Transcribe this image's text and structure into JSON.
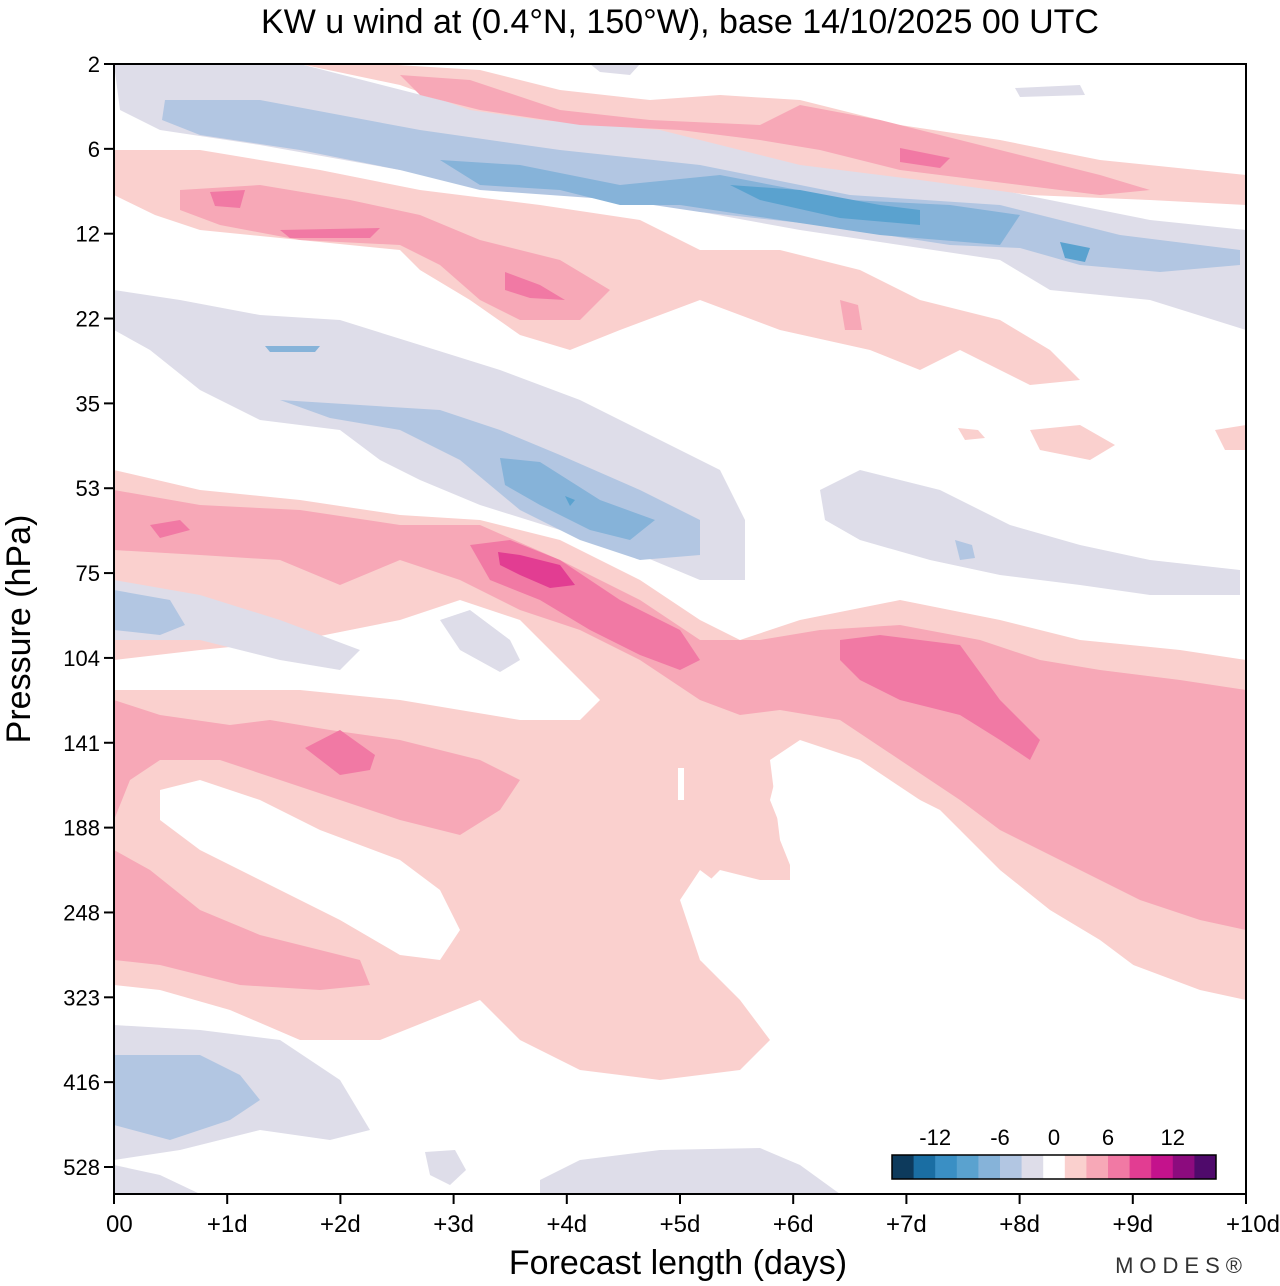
{
  "chart_data": {
    "type": "heatmap",
    "title": "KW u wind at (0.4°N, 150°W),  base 14/10/2025  00 UTC",
    "xlabel": "Forecast length (days)",
    "ylabel": "Pressure (hPa)",
    "x_ticks": [
      "00",
      "+1d",
      "+2d",
      "+3d",
      "+4d",
      "+5d",
      "+6d",
      "+7d",
      "+8d",
      "+9d",
      "+10d"
    ],
    "x_range_days": [
      0,
      10
    ],
    "y_ticks": [
      "2",
      "6",
      "12",
      "22",
      "35",
      "53",
      "75",
      "104",
      "141",
      "188",
      "248",
      "323",
      "416",
      "528"
    ],
    "colorbar": {
      "labels": [
        "-12",
        "-6",
        "0",
        "6",
        "12"
      ],
      "colors": [
        "#0d3a5c",
        "#1a6ea3",
        "#3a8fc4",
        "#5aa2cf",
        "#86b3d9",
        "#b2c6e2",
        "#dedde9",
        "#ffffff",
        "#fad0ce",
        "#f7a8b7",
        "#f179a4",
        "#e23d92",
        "#c4128c",
        "#8c0b7e",
        "#4f0a6b"
      ]
    },
    "features": [
      {
        "name": "negative-band-upper",
        "sign": "negative",
        "peak": -10,
        "levels_hPa": "6-14",
        "days": "1-9.5"
      },
      {
        "name": "positive-band-top",
        "sign": "positive",
        "peak": 9,
        "levels_hPa": "2-8",
        "days": "2-10"
      },
      {
        "name": "positive-band-12hPa",
        "sign": "positive",
        "peak": 9,
        "levels_hPa": "8-25",
        "days": "0-5"
      },
      {
        "name": "negative-band-35-75hPa",
        "sign": "negative",
        "peak": -10,
        "levels_hPa": "22-75",
        "days": "0-5.5"
      },
      {
        "name": "positive-band-75hPa",
        "sign": "positive",
        "peak": 12,
        "levels_hPa": "53-120",
        "days": "0-5"
      },
      {
        "name": "positive-band-104-188hPa",
        "sign": "positive",
        "peak": 9,
        "levels_hPa": "90-320",
        "days": "5-10"
      },
      {
        "name": "positive-band-lower",
        "sign": "positive",
        "peak": 9,
        "levels_hPa": "120-400",
        "days": "0-5.5"
      },
      {
        "name": "negative-band-416hPa",
        "sign": "negative",
        "peak": -6,
        "levels_hPa": "380-530",
        "days": "0-2.3"
      }
    ]
  },
  "branding": {
    "logo_text": "MODES®"
  }
}
